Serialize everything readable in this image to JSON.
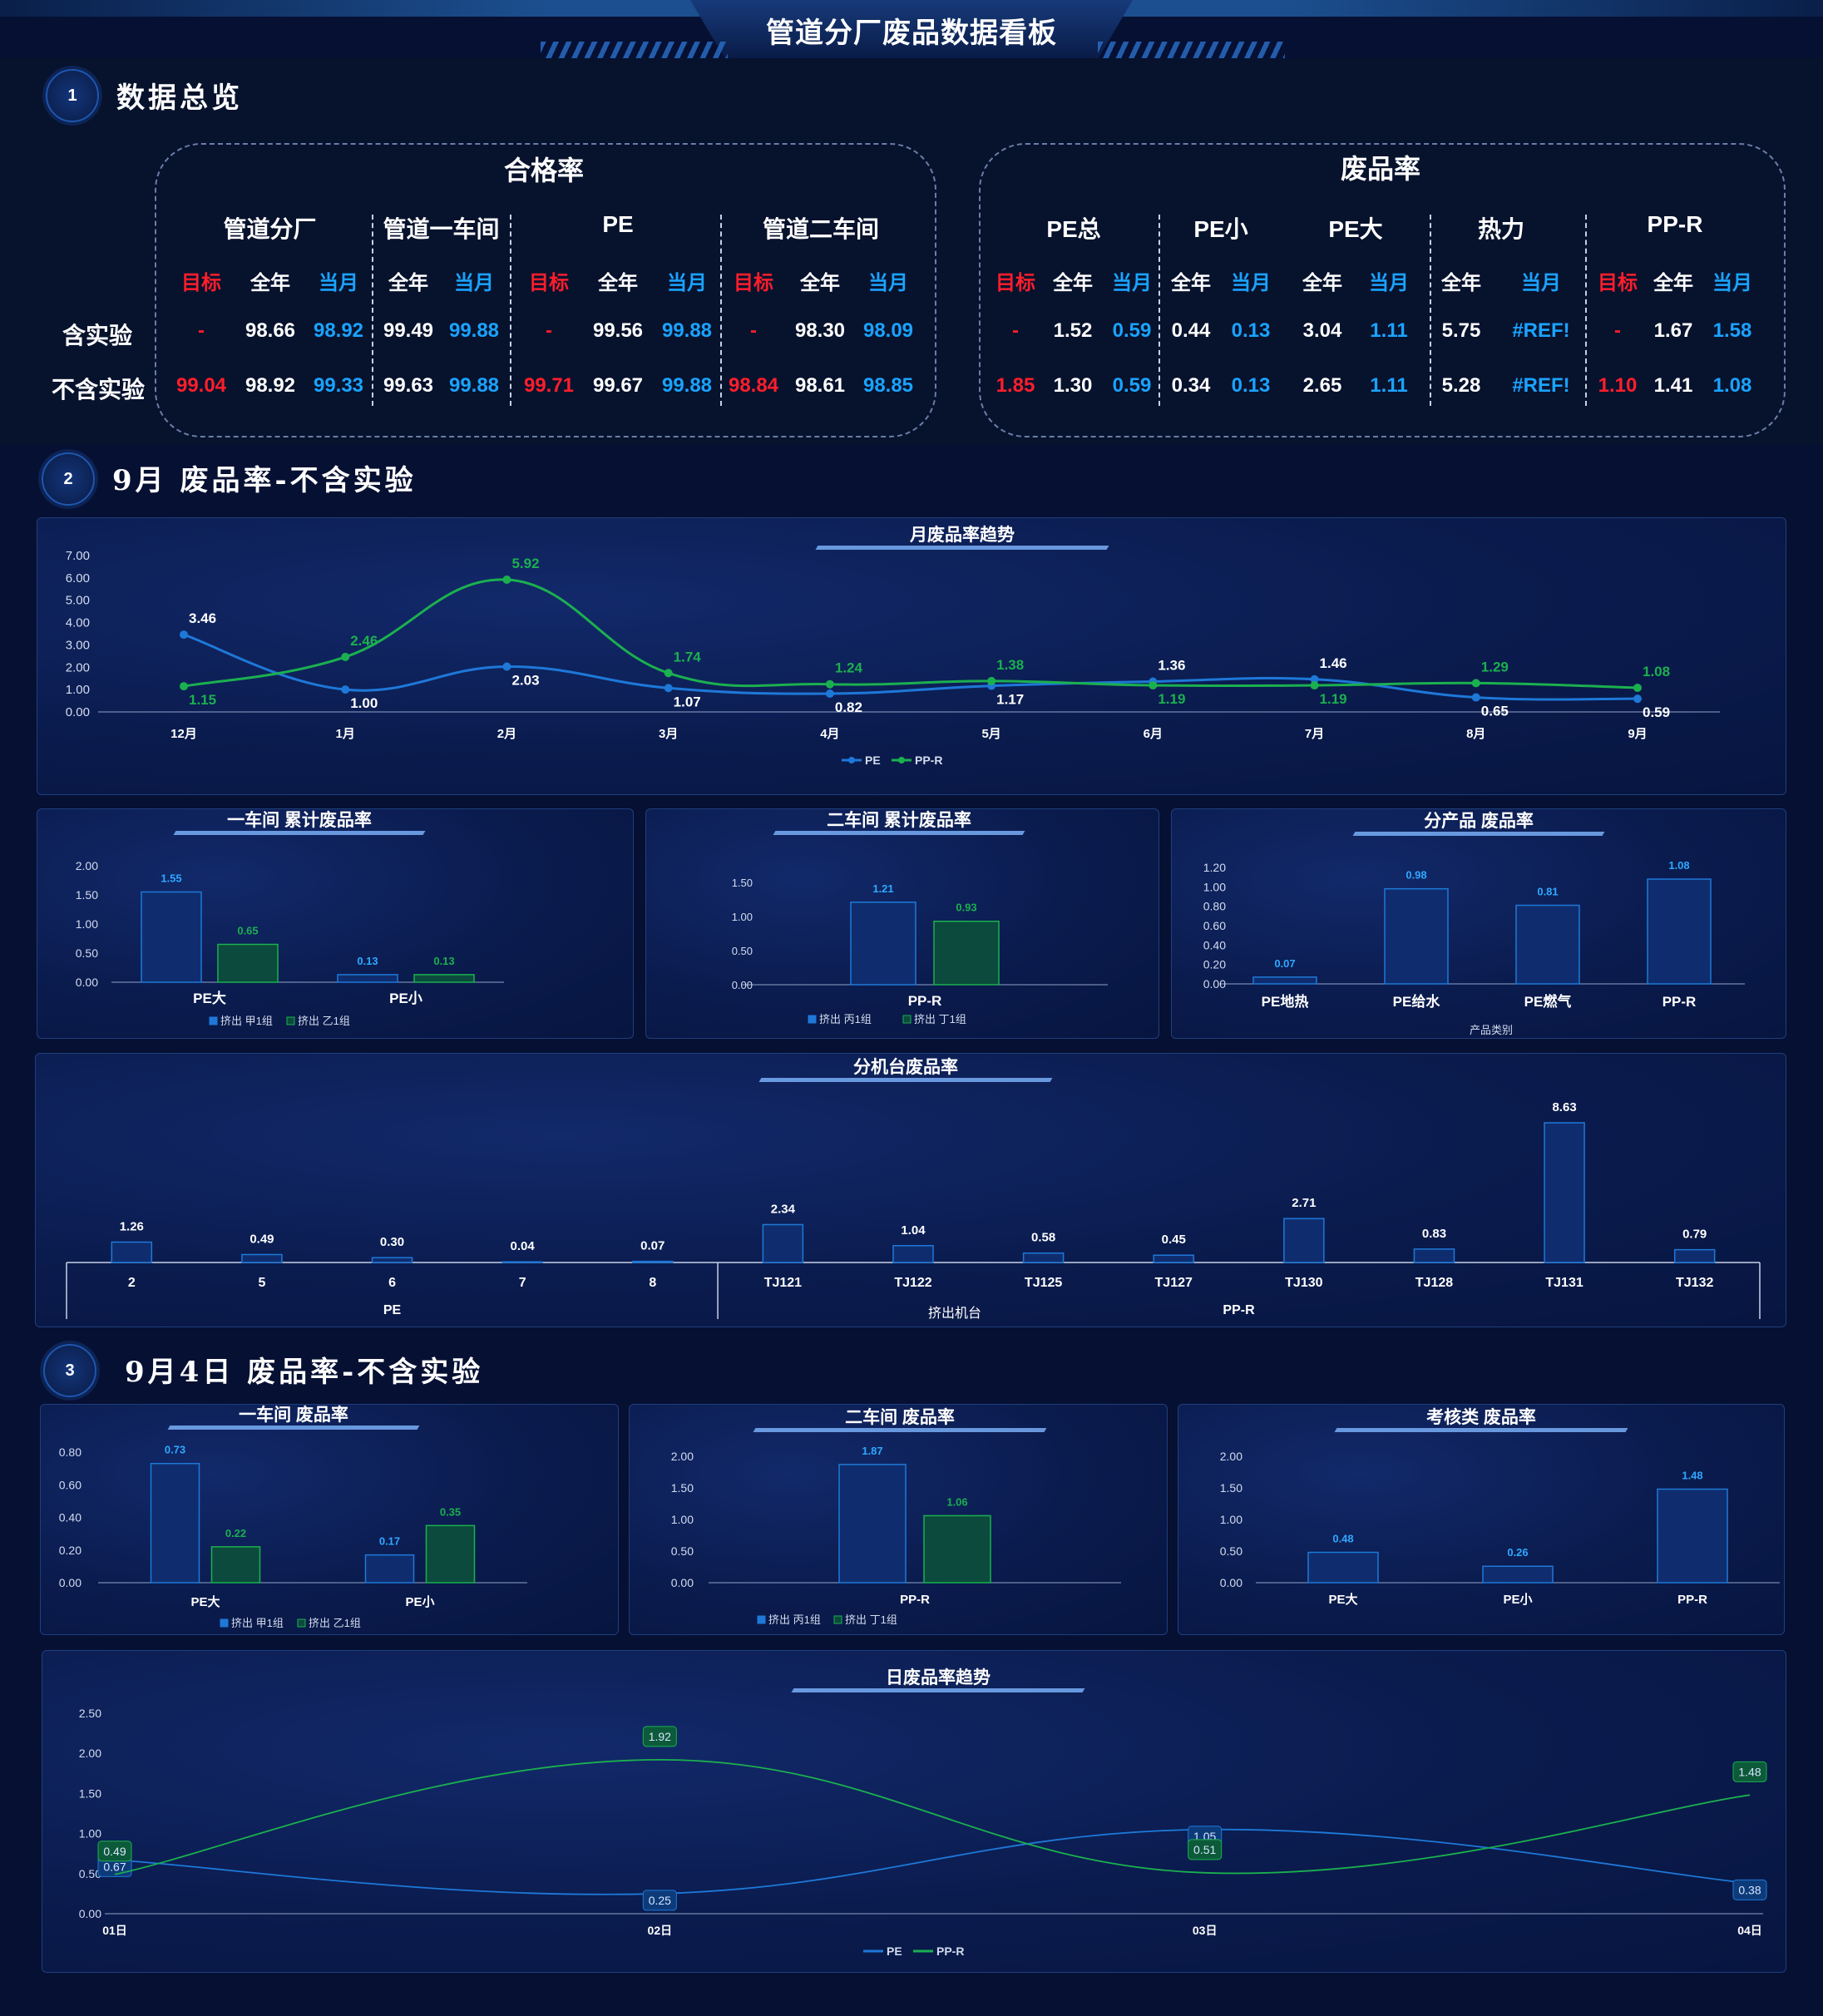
{
  "title": "管道分厂废品数据看板",
  "sections": [
    {
      "num": "1",
      "title": "数据总览"
    },
    {
      "num": "2",
      "title": "9月 废品率-不含实验"
    },
    {
      "num": "3",
      "title": "9月4日  废品率-不含实验"
    }
  ],
  "overview": {
    "pass": {
      "title": "合格率",
      "groups": [
        "管道分厂",
        "管道一车间",
        "PE",
        "管道二车间"
      ],
      "subheaders": [
        "目标",
        "全年",
        "当月",
        "全年",
        "当月",
        "目标",
        "全年",
        "当月",
        "目标",
        "全年",
        "当月"
      ],
      "rows": [
        {
          "label": "含实验",
          "values": [
            "-",
            "98.66",
            "98.92",
            "99.49",
            "99.88",
            "-",
            "99.56",
            "99.88",
            "-",
            "98.30",
            "98.09"
          ]
        },
        {
          "label": "不含实验",
          "values": [
            "99.04",
            "98.92",
            "99.33",
            "99.63",
            "99.88",
            "99.71",
            "99.67",
            "99.88",
            "98.84",
            "98.61",
            "98.85"
          ]
        }
      ]
    },
    "scrap": {
      "title": "废品率",
      "groups": [
        "PE总",
        "PE小",
        "PE大",
        "热力",
        "PP-R"
      ],
      "subheaders": [
        "目标",
        "全年",
        "当月",
        "全年",
        "当月",
        "全年",
        "当月",
        "全年",
        "当月",
        "目标",
        "全年",
        "当月"
      ],
      "rows": [
        {
          "label": "含实验",
          "values": [
            "-",
            "1.52",
            "0.59",
            "0.44",
            "0.13",
            "3.04",
            "1.11",
            "5.75",
            "#REF!",
            "-",
            "1.67",
            "1.58"
          ]
        },
        {
          "label": "不含实验",
          "values": [
            "1.85",
            "1.30",
            "0.59",
            "0.34",
            "0.13",
            "2.65",
            "1.11",
            "5.28",
            "#REF!",
            "1.10",
            "1.41",
            "1.08"
          ]
        }
      ]
    }
  },
  "colors": {
    "pe": "#1e78d8",
    "ppr": "#1bb04f",
    "red": "#ff1e2b",
    "blue": "#1aa3ff"
  },
  "chart_data": [
    {
      "id": "monthly",
      "type": "line",
      "title": "月废品率趋势",
      "x": [
        "12月",
        "1月",
        "2月",
        "3月",
        "4月",
        "5月",
        "6月",
        "7月",
        "8月",
        "9月"
      ],
      "ylim": [
        0,
        7
      ],
      "yticks": [
        "0.00",
        "1.00",
        "2.00",
        "3.00",
        "4.00",
        "5.00",
        "6.00",
        "7.00"
      ],
      "series": [
        {
          "name": "PE",
          "values": [
            3.46,
            1.0,
            2.03,
            1.07,
            0.82,
            1.17,
            1.36,
            1.46,
            0.65,
            0.59
          ]
        },
        {
          "name": "PP-R",
          "values": [
            1.15,
            2.46,
            5.92,
            1.74,
            1.24,
            1.38,
            1.19,
            1.19,
            1.29,
            1.08
          ]
        }
      ]
    },
    {
      "id": "ws1cum",
      "type": "bar",
      "title": "一车间 累计废品率",
      "categories": [
        "PE大",
        "PE小"
      ],
      "ylim": [
        0,
        2
      ],
      "yticks": [
        "0.00",
        "0.50",
        "1.00",
        "1.50",
        "2.00"
      ],
      "series": [
        {
          "name": "挤出 甲1组",
          "values": [
            1.55,
            0.13
          ]
        },
        {
          "name": "挤出 乙1组",
          "values": [
            0.65,
            0.13
          ]
        }
      ]
    },
    {
      "id": "ws2cum",
      "type": "bar",
      "title": "二车间 累计废品率",
      "categories": [
        "PP-R"
      ],
      "ylim": [
        0,
        1.5
      ],
      "yticks": [
        "0.00",
        "0.50",
        "1.00",
        "1.50"
      ],
      "series": [
        {
          "name": "挤出 丙1组",
          "values": [
            1.21
          ]
        },
        {
          "name": "挤出 丁1组",
          "values": [
            0.93
          ]
        }
      ]
    },
    {
      "id": "product",
      "type": "bar",
      "title": "分产品 废品率",
      "xlabel": "产品类别",
      "categories": [
        "PE地热",
        "PE给水",
        "PE燃气",
        "PP-R"
      ],
      "ylim": [
        0,
        1.2
      ],
      "yticks": [
        "0.00",
        "0.20",
        "0.40",
        "0.60",
        "0.80",
        "1.00",
        "1.20"
      ],
      "series": [
        {
          "values": [
            0.07,
            0.98,
            0.81,
            1.08
          ]
        }
      ]
    },
    {
      "id": "machine",
      "type": "bar",
      "title": "分机台废品率",
      "xlabel": "挤出机台",
      "categories": [
        "2",
        "5",
        "6",
        "7",
        "8",
        "TJ121",
        "TJ122",
        "TJ125",
        "TJ127",
        "TJ130",
        "TJ128",
        "TJ131",
        "TJ132"
      ],
      "groups": [
        {
          "name": "PE",
          "count": 5
        },
        {
          "name": "PP-R",
          "count": 8
        }
      ],
      "ylim": [
        0,
        8.63
      ],
      "series": [
        {
          "values": [
            1.26,
            0.49,
            0.3,
            0.04,
            0.07,
            2.34,
            1.04,
            0.58,
            0.45,
            2.71,
            0.83,
            8.63,
            0.79
          ]
        }
      ]
    },
    {
      "id": "ws1day",
      "type": "bar",
      "title": "一车间 废品率",
      "categories": [
        "PE大",
        "PE小"
      ],
      "ylim": [
        0,
        0.8
      ],
      "yticks": [
        "0.00",
        "0.20",
        "0.40",
        "0.60",
        "0.80"
      ],
      "series": [
        {
          "name": "挤出 甲1组",
          "values": [
            0.73,
            0.17
          ]
        },
        {
          "name": "挤出 乙1组",
          "values": [
            0.22,
            0.35
          ]
        }
      ]
    },
    {
      "id": "ws2day",
      "type": "bar",
      "title": "二车间 废品率",
      "categories": [
        "PP-R"
      ],
      "ylim": [
        0,
        2
      ],
      "yticks": [
        "0.00",
        "0.50",
        "1.00",
        "1.50",
        "2.00"
      ],
      "series": [
        {
          "name": "挤出 丙1组",
          "values": [
            1.87
          ]
        },
        {
          "name": "挤出 丁1组",
          "values": [
            1.06
          ]
        }
      ]
    },
    {
      "id": "assess",
      "type": "bar",
      "title": "考核类 废品率",
      "categories": [
        "PE大",
        "PE小",
        "PP-R"
      ],
      "ylim": [
        0,
        2
      ],
      "yticks": [
        "0.00",
        "0.50",
        "1.00",
        "1.50",
        "2.00"
      ],
      "series": [
        {
          "values": [
            0.48,
            0.26,
            1.48
          ]
        }
      ]
    },
    {
      "id": "daily",
      "type": "line",
      "title": "日废品率趋势",
      "x": [
        "01日",
        "02日",
        "03日",
        "04日"
      ],
      "ylim": [
        0,
        2.5
      ],
      "yticks": [
        "0.00",
        "0.50",
        "1.00",
        "1.50",
        "2.00",
        "2.50"
      ],
      "series": [
        {
          "name": "PE",
          "values": [
            0.67,
            0.25,
            1.05,
            0.38
          ]
        },
        {
          "name": "PP-R",
          "values": [
            0.49,
            1.92,
            0.51,
            1.48
          ]
        }
      ]
    }
  ]
}
